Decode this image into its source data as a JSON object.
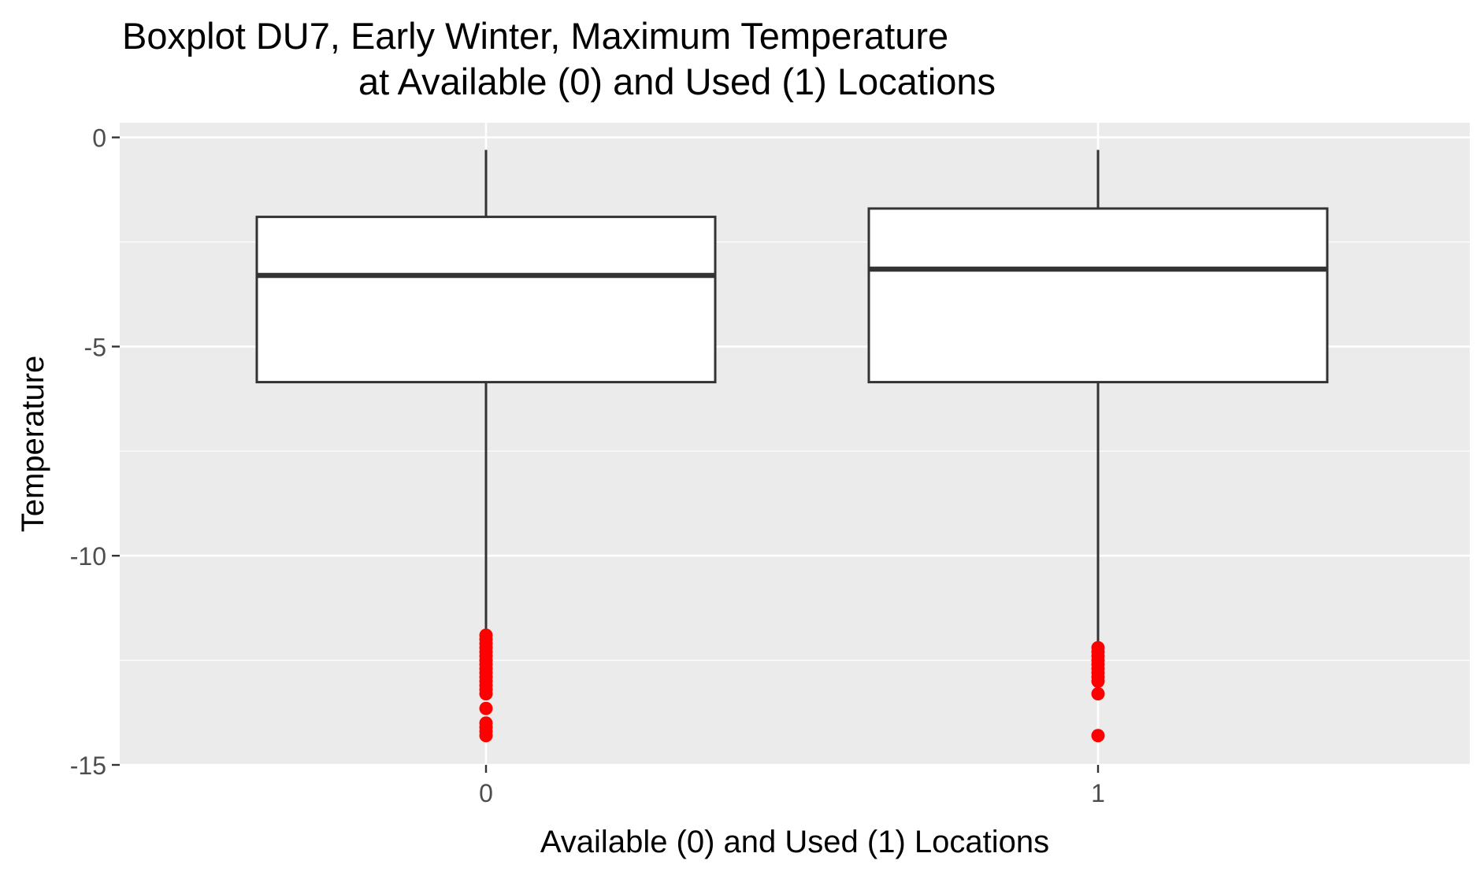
{
  "chart_data": {
    "type": "boxplot",
    "title": "Boxplot DU7, Early Winter, Maximum Temperature",
    "subtitle": "at Available (0) and Used (1) Locations",
    "xlabel": "Available (0) and Used (1) Locations",
    "ylabel": "Temperature",
    "ylim": [
      -15,
      0.35
    ],
    "y_ticks": [
      "0",
      "-5",
      "-10",
      "-15"
    ],
    "categories": [
      "0",
      "1"
    ],
    "grid": true,
    "legend": "none",
    "colors": {
      "panel_background": "#ebebeb",
      "grid": "#ffffff",
      "box_fill": "#ffffff",
      "box_line": "#333333",
      "outlier": "#ff0000",
      "tick_text": "#4d4d4d",
      "title_text": "#000000"
    },
    "boxes": [
      {
        "category": "0",
        "whisker_high": -0.3,
        "q3": -1.9,
        "median": -3.3,
        "q1": -5.85,
        "whisker_low": -11.8,
        "outliers": [
          -11.9,
          -12.0,
          -12.1,
          -12.2,
          -12.3,
          -12.4,
          -12.5,
          -12.6,
          -12.7,
          -12.8,
          -12.9,
          -13.0,
          -13.1,
          -13.2,
          -13.3,
          -13.65,
          -14.0,
          -14.1,
          -14.2,
          -14.3
        ]
      },
      {
        "category": "1",
        "whisker_high": -0.3,
        "q3": -1.7,
        "median": -3.15,
        "q1": -5.85,
        "whisker_low": -12.1,
        "outliers": [
          -12.2,
          -12.3,
          -12.4,
          -12.5,
          -12.6,
          -12.7,
          -12.8,
          -12.9,
          -13.0,
          -13.3,
          -14.3
        ]
      }
    ]
  }
}
